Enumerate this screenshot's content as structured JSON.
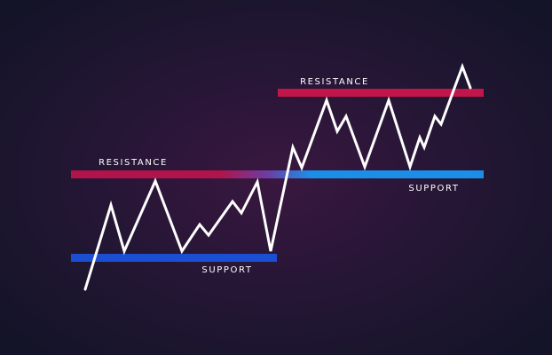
{
  "levels": [
    {
      "label": "RESISTANCE"
    },
    {
      "label": "SUPPORT"
    },
    {
      "label": "RESISTANCE"
    },
    {
      "label": "SUPPORT"
    }
  ]
}
